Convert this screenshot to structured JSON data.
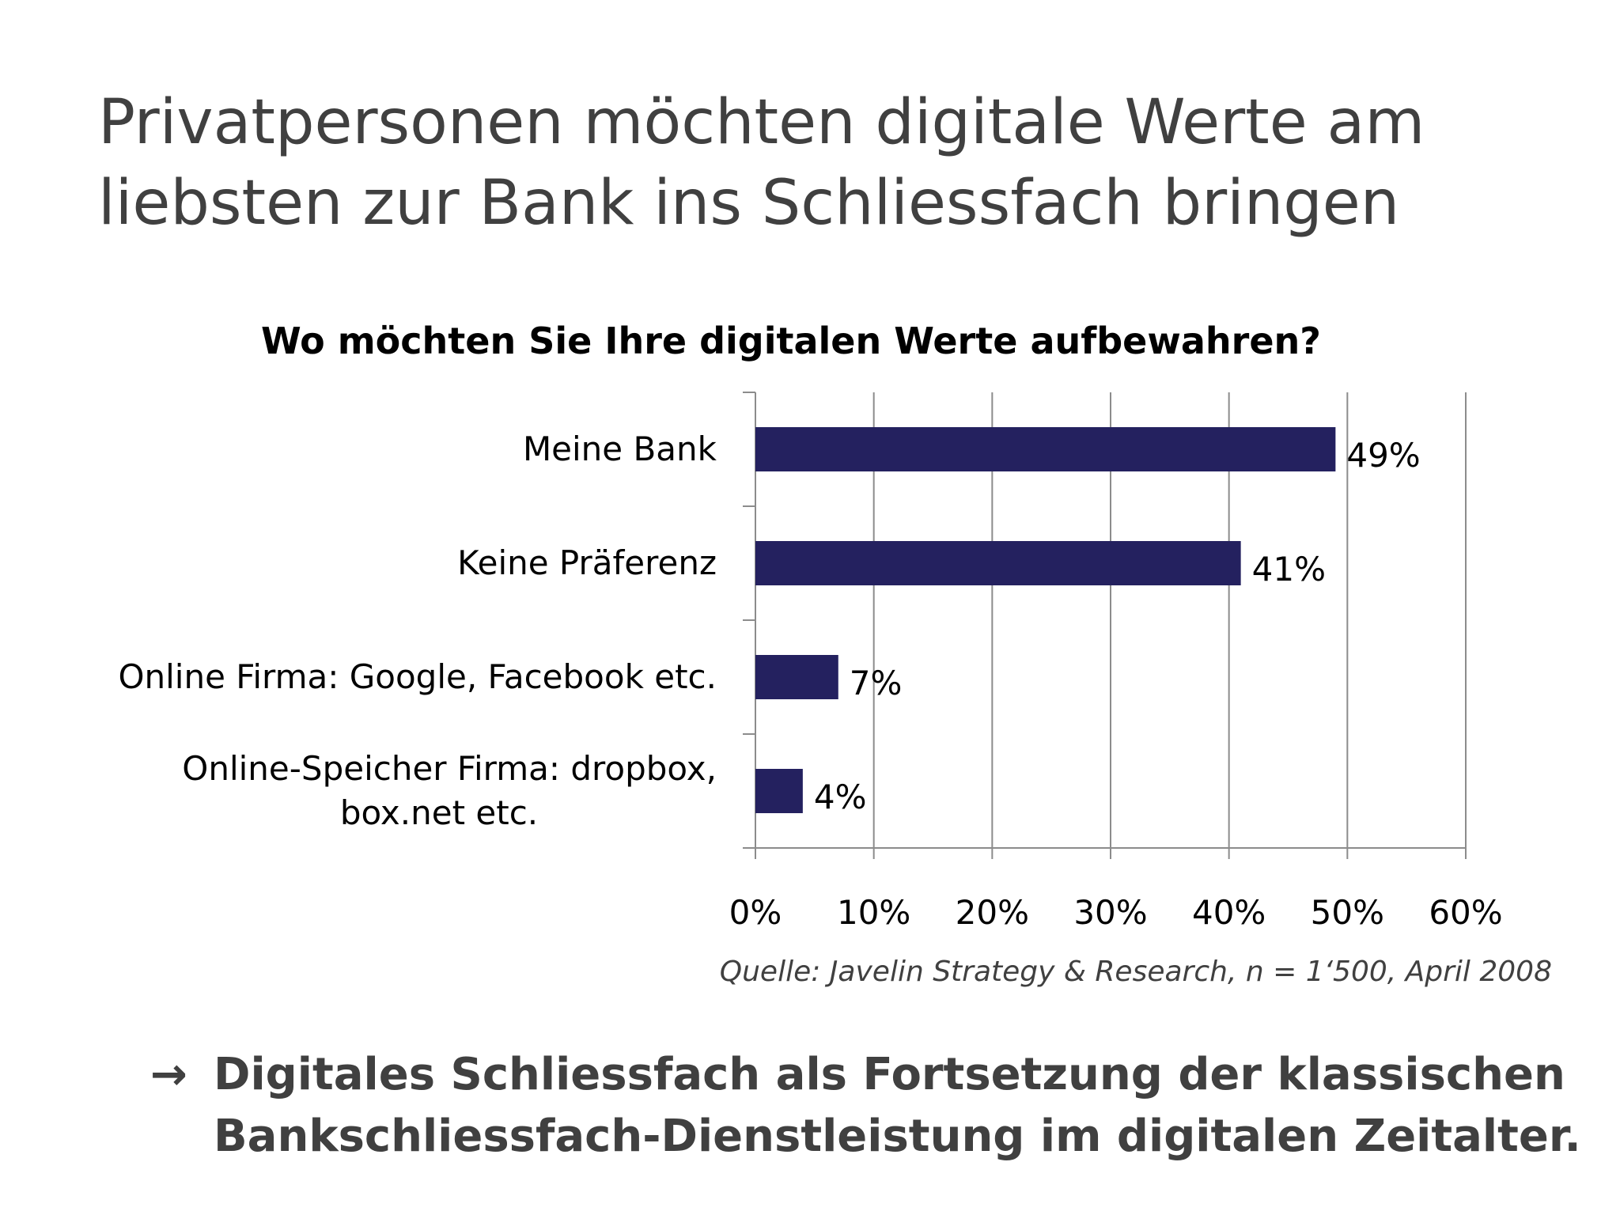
{
  "slide": {
    "title_lines": [
      "Privatpersonen möchten digitale Werte am",
      "liebsten zur Bank ins Schliessfach bringen"
    ],
    "conclusion_arrow": "→",
    "conclusion_lines": [
      "Digitales Schliessfach als Fortsetzung der klassischen",
      "Bankschliessfach-Dienstleistung im digitalen Zeitalter."
    ]
  },
  "chart_data": {
    "type": "bar",
    "orientation": "horizontal",
    "title": "Wo möchten Sie Ihre digitalen Werte aufbewahren?",
    "categories": [
      [
        "Meine Bank"
      ],
      [
        "Keine Präferenz"
      ],
      [
        "Online Firma: Google, Facebook etc."
      ],
      [
        "Online-Speicher Firma: dropbox,",
        "box.net etc."
      ]
    ],
    "values": [
      49,
      41,
      7,
      4
    ],
    "value_labels": [
      "49%",
      "41%",
      "7%",
      "4%"
    ],
    "xlim": [
      0,
      60
    ],
    "x_ticks": [
      0,
      10,
      20,
      30,
      40,
      50,
      60
    ],
    "x_tick_labels": [
      "0%",
      "10%",
      "20%",
      "30%",
      "40%",
      "50%",
      "60%"
    ],
    "grid": "vertical",
    "legend": "none",
    "bar_color": "#24215f",
    "source": "Quelle:  Javelin Strategy & Research, n = 1‘500, April 2008"
  }
}
